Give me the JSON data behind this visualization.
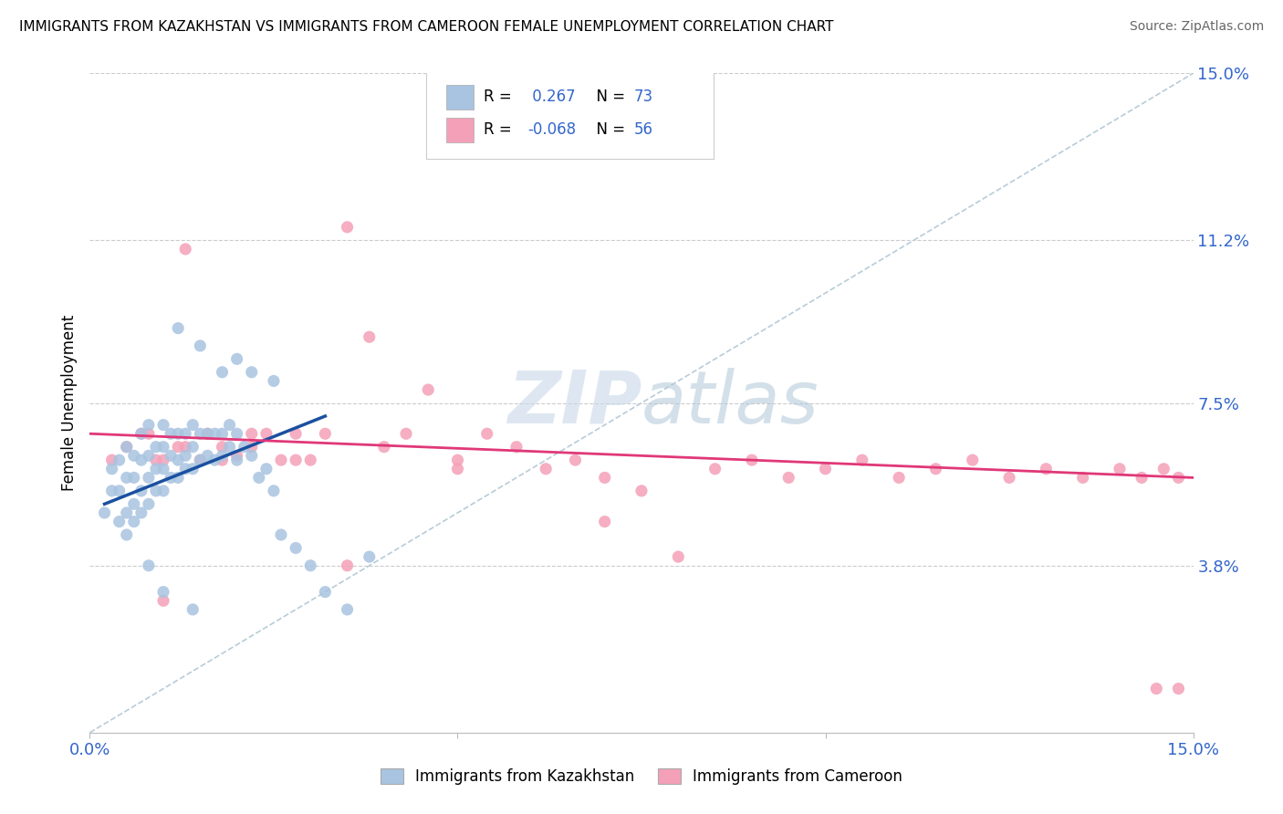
{
  "title": "IMMIGRANTS FROM KAZAKHSTAN VS IMMIGRANTS FROM CAMEROON FEMALE UNEMPLOYMENT CORRELATION CHART",
  "source": "Source: ZipAtlas.com",
  "ylabel": "Female Unemployment",
  "right_yticks": [
    "15.0%",
    "11.2%",
    "7.5%",
    "3.8%"
  ],
  "right_ytick_vals": [
    0.15,
    0.112,
    0.075,
    0.038
  ],
  "xmin": 0.0,
  "xmax": 0.15,
  "ymin": 0.0,
  "ymax": 0.15,
  "kaz_color": "#a8c4e0",
  "cam_color": "#f4a0b8",
  "kaz_line_color": "#1a50a0",
  "cam_line_color": "#e03878",
  "diag_color": "#b8ccd8",
  "kaz_x": [
    0.002,
    0.003,
    0.003,
    0.004,
    0.004,
    0.004,
    0.005,
    0.005,
    0.005,
    0.005,
    0.006,
    0.006,
    0.006,
    0.006,
    0.007,
    0.007,
    0.007,
    0.007,
    0.008,
    0.008,
    0.008,
    0.008,
    0.009,
    0.009,
    0.009,
    0.01,
    0.01,
    0.01,
    0.01,
    0.011,
    0.011,
    0.011,
    0.012,
    0.012,
    0.012,
    0.013,
    0.013,
    0.013,
    0.014,
    0.014,
    0.014,
    0.015,
    0.015,
    0.016,
    0.016,
    0.017,
    0.017,
    0.018,
    0.018,
    0.019,
    0.019,
    0.02,
    0.02,
    0.021,
    0.022,
    0.023,
    0.024,
    0.025,
    0.026,
    0.028,
    0.03,
    0.032,
    0.035,
    0.038,
    0.012,
    0.015,
    0.018,
    0.02,
    0.022,
    0.025,
    0.008,
    0.01,
    0.014
  ],
  "kaz_y": [
    0.05,
    0.055,
    0.06,
    0.048,
    0.055,
    0.062,
    0.045,
    0.05,
    0.058,
    0.065,
    0.048,
    0.052,
    0.058,
    0.063,
    0.05,
    0.055,
    0.062,
    0.068,
    0.052,
    0.058,
    0.063,
    0.07,
    0.055,
    0.06,
    0.065,
    0.055,
    0.06,
    0.065,
    0.07,
    0.058,
    0.063,
    0.068,
    0.058,
    0.062,
    0.068,
    0.06,
    0.063,
    0.068,
    0.06,
    0.065,
    0.07,
    0.062,
    0.068,
    0.063,
    0.068,
    0.062,
    0.068,
    0.063,
    0.068,
    0.065,
    0.07,
    0.062,
    0.068,
    0.065,
    0.063,
    0.058,
    0.06,
    0.055,
    0.045,
    0.042,
    0.038,
    0.032,
    0.028,
    0.04,
    0.092,
    0.088,
    0.082,
    0.085,
    0.082,
    0.08,
    0.038,
    0.032,
    0.028
  ],
  "cam_x": [
    0.003,
    0.005,
    0.007,
    0.009,
    0.01,
    0.012,
    0.013,
    0.015,
    0.016,
    0.018,
    0.02,
    0.022,
    0.024,
    0.026,
    0.028,
    0.03,
    0.032,
    0.035,
    0.038,
    0.04,
    0.043,
    0.046,
    0.05,
    0.054,
    0.058,
    0.062,
    0.066,
    0.07,
    0.075,
    0.08,
    0.085,
    0.09,
    0.095,
    0.1,
    0.105,
    0.11,
    0.115,
    0.12,
    0.125,
    0.13,
    0.135,
    0.14,
    0.143,
    0.146,
    0.148,
    0.013,
    0.018,
    0.022,
    0.028,
    0.035,
    0.008,
    0.05,
    0.07,
    0.145,
    0.01,
    0.148
  ],
  "cam_y": [
    0.062,
    0.065,
    0.068,
    0.062,
    0.062,
    0.065,
    0.11,
    0.062,
    0.068,
    0.065,
    0.063,
    0.065,
    0.068,
    0.062,
    0.068,
    0.062,
    0.068,
    0.115,
    0.09,
    0.065,
    0.068,
    0.078,
    0.062,
    0.068,
    0.065,
    0.06,
    0.062,
    0.058,
    0.055,
    0.04,
    0.06,
    0.062,
    0.058,
    0.06,
    0.062,
    0.058,
    0.06,
    0.062,
    0.058,
    0.06,
    0.058,
    0.06,
    0.058,
    0.06,
    0.058,
    0.065,
    0.062,
    0.068,
    0.062,
    0.038,
    0.068,
    0.06,
    0.048,
    0.01,
    0.03,
    0.01
  ],
  "kaz_line_x": [
    0.002,
    0.032
  ],
  "kaz_line_y": [
    0.052,
    0.072
  ],
  "cam_line_x": [
    0.0,
    0.15
  ],
  "cam_line_y": [
    0.068,
    0.058
  ]
}
